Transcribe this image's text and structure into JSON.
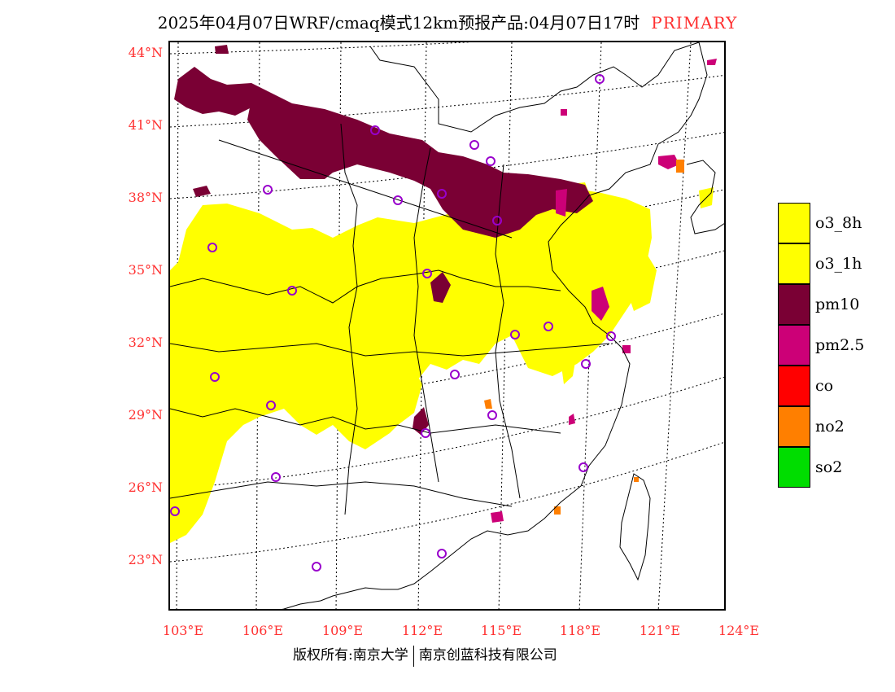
{
  "title": {
    "main": "2025年04月07日WRF/cmaq模式12km预报产品:04月07日17时",
    "tag": "PRIMARY"
  },
  "axes": {
    "lat_labels": [
      "44°N",
      "41°N",
      "38°N",
      "35°N",
      "32°N",
      "29°N",
      "26°N",
      "23°N"
    ],
    "lon_labels": [
      "103°E",
      "106°E",
      "109°E",
      "112°E",
      "115°E",
      "118°E",
      "121°E",
      "124°E"
    ]
  },
  "legend": [
    {
      "label": "o3_8h",
      "color": "#ffff00"
    },
    {
      "label": "o3_1h",
      "color": "#ffff00"
    },
    {
      "label": "pm10",
      "color": "#7a0034"
    },
    {
      "label": "pm2.5",
      "color": "#cc0077"
    },
    {
      "label": "co",
      "color": "#ff0000"
    },
    {
      "label": "no2",
      "color": "#ff7f00"
    },
    {
      "label": "so2",
      "color": "#00dd00"
    }
  ],
  "colors": {
    "o3": "#ffff00",
    "pm10": "#7a0034",
    "pm25": "#cc0077",
    "no2": "#ff7f00",
    "axis_label": "#ff3030",
    "station_marker": "#9900cc"
  },
  "footer": {
    "left": "版权所有:南京大学",
    "right": "南京创蓝科技有限公司"
  }
}
